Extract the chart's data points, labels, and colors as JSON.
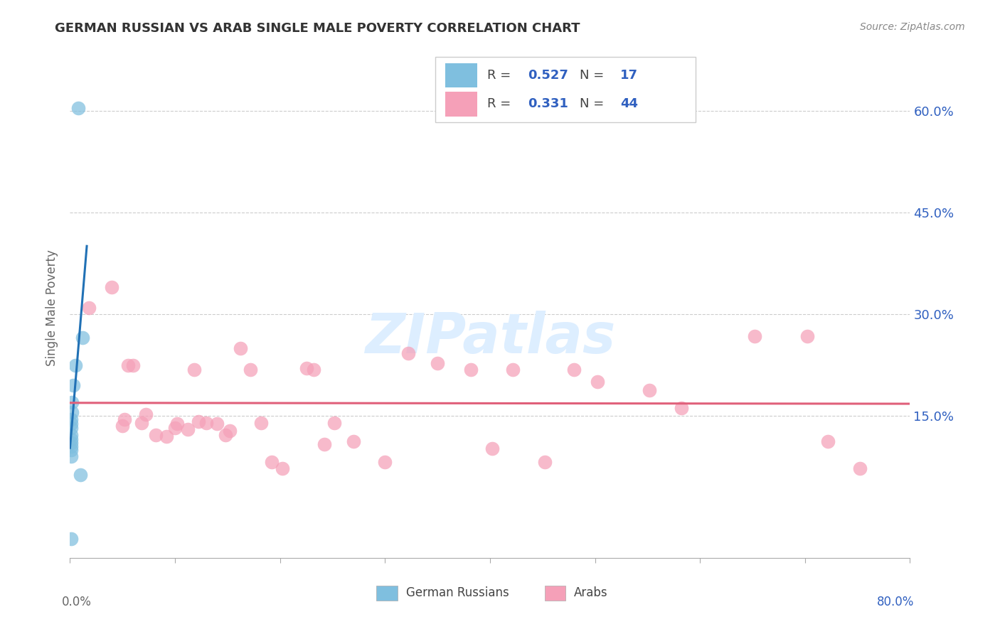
{
  "title": "GERMAN RUSSIAN VS ARAB SINGLE MALE POVERTY CORRELATION CHART",
  "source": "Source: ZipAtlas.com",
  "ylabel": "Single Male Poverty",
  "xlim": [
    0.0,
    0.8
  ],
  "ylim": [
    -0.06,
    0.68
  ],
  "ytick_positions": [
    0.0,
    0.15,
    0.3,
    0.45,
    0.6
  ],
  "ytick_labels": [
    "",
    "15.0%",
    "30.0%",
    "45.0%",
    "60.0%"
  ],
  "xtick_positions": [
    0.0,
    0.1,
    0.2,
    0.3,
    0.4,
    0.5,
    0.6,
    0.7,
    0.8
  ],
  "legend1_R": "0.527",
  "legend1_N": "17",
  "legend2_R": "0.331",
  "legend2_N": "44",
  "blue_scatter_color": "#7fbfdf",
  "blue_line_color": "#2171b5",
  "pink_scatter_color": "#f5a0b8",
  "pink_line_color": "#e0607a",
  "watermark_color": "#ddeeff",
  "german_russian_x": [
    0.008,
    0.012,
    0.005,
    0.003,
    0.002,
    0.0015,
    0.001,
    0.001,
    0.001,
    0.001,
    0.001,
    0.001,
    0.001,
    0.001,
    0.001,
    0.001,
    0.01
  ],
  "german_russian_y": [
    0.605,
    0.265,
    0.225,
    0.195,
    0.17,
    0.155,
    0.145,
    0.138,
    0.132,
    0.122,
    0.115,
    0.11,
    0.105,
    0.1,
    0.09,
    -0.032,
    0.063
  ],
  "arab_x": [
    0.018,
    0.04,
    0.055,
    0.06,
    0.05,
    0.052,
    0.068,
    0.072,
    0.082,
    0.092,
    0.1,
    0.102,
    0.112,
    0.122,
    0.118,
    0.13,
    0.14,
    0.148,
    0.152,
    0.162,
    0.172,
    0.182,
    0.192,
    0.202,
    0.225,
    0.232,
    0.242,
    0.252,
    0.27,
    0.3,
    0.322,
    0.35,
    0.382,
    0.402,
    0.422,
    0.452,
    0.48,
    0.502,
    0.552,
    0.582,
    0.652,
    0.702,
    0.722,
    0.752
  ],
  "arab_y": [
    0.31,
    0.34,
    0.225,
    0.225,
    0.135,
    0.145,
    0.14,
    0.152,
    0.122,
    0.12,
    0.132,
    0.138,
    0.13,
    0.142,
    0.218,
    0.14,
    0.138,
    0.122,
    0.128,
    0.25,
    0.218,
    0.14,
    0.082,
    0.072,
    0.22,
    0.218,
    0.108,
    0.14,
    0.112,
    0.082,
    0.242,
    0.228,
    0.218,
    0.102,
    0.218,
    0.082,
    0.218,
    0.2,
    0.188,
    0.162,
    0.268,
    0.268,
    0.112,
    0.072
  ]
}
